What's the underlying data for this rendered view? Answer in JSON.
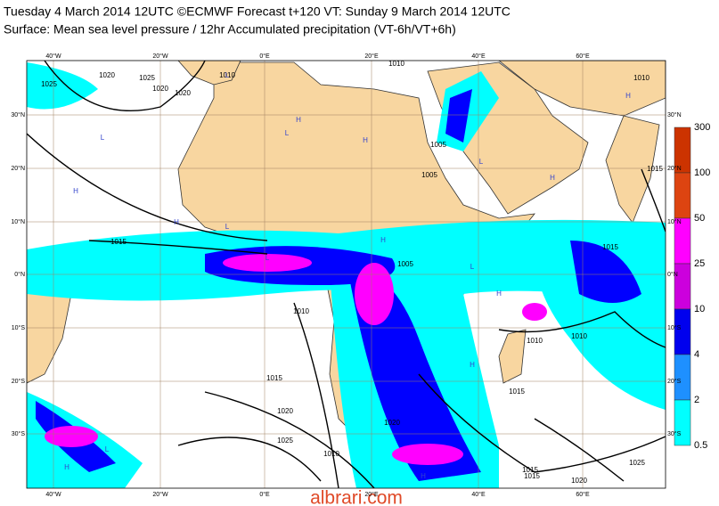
{
  "header": {
    "line1": "Tuesday 4 March 2014 12UTC ©ECMWF Forecast t+120 VT: Sunday 9 March 2014 12UTC",
    "line2": "Surface: Mean sea level pressure / 12hr Accumulated precipitation (VT-6h/VT+6h)"
  },
  "map": {
    "lon_labels": [
      "40°W",
      "20°W",
      "0°E",
      "20°E",
      "40°E",
      "60°E"
    ],
    "lat_labels": [
      "30°N",
      "20°N",
      "10°N",
      "0°N",
      "10°S",
      "20°S",
      "30°S"
    ],
    "isobar_labels": [
      "1025",
      "1020",
      "1025",
      "1020",
      "1015",
      "1010",
      "1020",
      "1010",
      "1015",
      "1005",
      "1010",
      "1015",
      "1020",
      "1025",
      "1010",
      "1015",
      "1010",
      "1015",
      "1020",
      "1025",
      "1015",
      "1005",
      "1005",
      "1010",
      "1010",
      "1020",
      "1015"
    ],
    "pressure_centers": [
      "H",
      "L",
      "H",
      "L",
      "H",
      "L",
      "L",
      "H",
      "L",
      "H",
      "H",
      "L",
      "L",
      "H",
      "H",
      "L",
      "H",
      "H",
      "H"
    ]
  },
  "colorbar": {
    "labels": [
      300,
      100,
      50,
      25,
      10,
      4,
      2,
      0.5
    ]
  },
  "watermark": "albrari.com"
}
